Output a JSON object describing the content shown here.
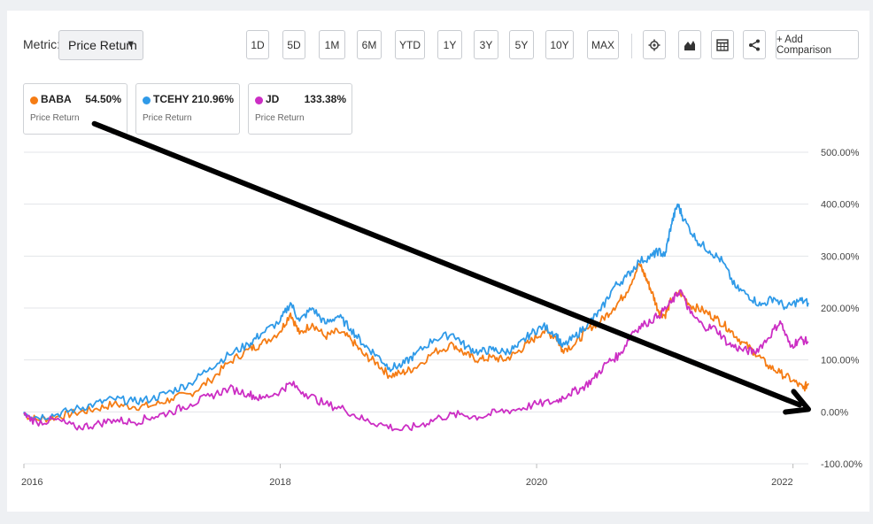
{
  "toolbar": {
    "metric_label": "Metric:",
    "metric_value": "Price Return",
    "ranges": [
      "1D",
      "5D",
      "1M",
      "6M",
      "YTD",
      "1Y",
      "3Y",
      "5Y",
      "10Y",
      "MAX"
    ],
    "add_comparison": "+ Add Comparison",
    "icons": [
      "gear-icon",
      "mountain-chart-icon",
      "table-icon",
      "share-icon"
    ]
  },
  "legend_cards": [
    {
      "ticker": "BABA",
      "value": "54.50%",
      "sub": "Price Return",
      "color": "#f57c14"
    },
    {
      "ticker": "TCEHY",
      "value": "210.96%",
      "sub": "Price Return",
      "color": "#2f9ae8"
    },
    {
      "ticker": "JD",
      "value": "133.38%",
      "sub": "Price Return",
      "color": "#cc2ec4"
    }
  ],
  "chart_data": {
    "type": "line",
    "x_ticks": [
      "2016",
      "2018",
      "2020",
      "2022"
    ],
    "y_ticks": [
      "500.00%",
      "400.00%",
      "300.00%",
      "200.00%",
      "100.00%",
      "0.00%",
      "-100.00%"
    ],
    "xlim": [
      2016.0,
      2022.12
    ],
    "ylim": [
      -100,
      500
    ],
    "grid": true,
    "arrow_annotation": {
      "from": [
        2016.55,
        555
      ],
      "to": [
        2022.12,
        5
      ]
    },
    "series": [
      {
        "name": "BABA",
        "color": "#f57c14",
        "points": [
          [
            2016.0,
            -5
          ],
          [
            2016.1,
            -15
          ],
          [
            2016.25,
            -10
          ],
          [
            2016.4,
            -2
          ],
          [
            2016.55,
            5
          ],
          [
            2016.7,
            15
          ],
          [
            2016.85,
            10
          ],
          [
            2017.0,
            12
          ],
          [
            2017.15,
            25
          ],
          [
            2017.3,
            35
          ],
          [
            2017.45,
            60
          ],
          [
            2017.6,
            95
          ],
          [
            2017.75,
            120
          ],
          [
            2017.85,
            130
          ],
          [
            2018.0,
            155
          ],
          [
            2018.08,
            190
          ],
          [
            2018.15,
            150
          ],
          [
            2018.25,
            170
          ],
          [
            2018.35,
            145
          ],
          [
            2018.45,
            155
          ],
          [
            2018.55,
            140
          ],
          [
            2018.65,
            110
          ],
          [
            2018.75,
            95
          ],
          [
            2018.85,
            70
          ],
          [
            2018.95,
            75
          ],
          [
            2019.05,
            85
          ],
          [
            2019.2,
            115
          ],
          [
            2019.35,
            130
          ],
          [
            2019.45,
            110
          ],
          [
            2019.55,
            100
          ],
          [
            2019.65,
            105
          ],
          [
            2019.75,
            100
          ],
          [
            2019.85,
            115
          ],
          [
            2019.95,
            135
          ],
          [
            2020.05,
            155
          ],
          [
            2020.15,
            145
          ],
          [
            2020.2,
            120
          ],
          [
            2020.3,
            130
          ],
          [
            2020.4,
            160
          ],
          [
            2020.5,
            175
          ],
          [
            2020.6,
            200
          ],
          [
            2020.7,
            230
          ],
          [
            2020.8,
            285
          ],
          [
            2020.85,
            260
          ],
          [
            2020.9,
            230
          ],
          [
            2020.95,
            195
          ],
          [
            2021.0,
            185
          ],
          [
            2021.05,
            215
          ],
          [
            2021.12,
            230
          ],
          [
            2021.2,
            205
          ],
          [
            2021.3,
            195
          ],
          [
            2021.4,
            180
          ],
          [
            2021.5,
            160
          ],
          [
            2021.6,
            135
          ],
          [
            2021.7,
            115
          ],
          [
            2021.8,
            90
          ],
          [
            2021.9,
            75
          ],
          [
            2022.0,
            60
          ],
          [
            2022.08,
            45
          ],
          [
            2022.12,
            55
          ]
        ]
      },
      {
        "name": "TCEHY",
        "color": "#2f9ae8",
        "points": [
          [
            2016.0,
            0
          ],
          [
            2016.1,
            -10
          ],
          [
            2016.25,
            -5
          ],
          [
            2016.4,
            5
          ],
          [
            2016.55,
            15
          ],
          [
            2016.7,
            25
          ],
          [
            2016.85,
            20
          ],
          [
            2017.0,
            25
          ],
          [
            2017.15,
            40
          ],
          [
            2017.3,
            55
          ],
          [
            2017.45,
            85
          ],
          [
            2017.6,
            110
          ],
          [
            2017.75,
            130
          ],
          [
            2017.85,
            150
          ],
          [
            2018.0,
            175
          ],
          [
            2018.08,
            210
          ],
          [
            2018.15,
            175
          ],
          [
            2018.25,
            200
          ],
          [
            2018.35,
            170
          ],
          [
            2018.45,
            185
          ],
          [
            2018.55,
            160
          ],
          [
            2018.65,
            130
          ],
          [
            2018.75,
            110
          ],
          [
            2018.85,
            85
          ],
          [
            2018.95,
            90
          ],
          [
            2019.05,
            110
          ],
          [
            2019.2,
            140
          ],
          [
            2019.35,
            150
          ],
          [
            2019.45,
            125
          ],
          [
            2019.55,
            115
          ],
          [
            2019.65,
            120
          ],
          [
            2019.75,
            115
          ],
          [
            2019.85,
            125
          ],
          [
            2019.95,
            150
          ],
          [
            2020.05,
            165
          ],
          [
            2020.15,
            150
          ],
          [
            2020.2,
            125
          ],
          [
            2020.3,
            145
          ],
          [
            2020.4,
            170
          ],
          [
            2020.5,
            195
          ],
          [
            2020.6,
            240
          ],
          [
            2020.7,
            260
          ],
          [
            2020.8,
            290
          ],
          [
            2020.9,
            300
          ],
          [
            2020.95,
            310
          ],
          [
            2021.0,
            300
          ],
          [
            2021.05,
            360
          ],
          [
            2021.1,
            400
          ],
          [
            2021.15,
            370
          ],
          [
            2021.25,
            330
          ],
          [
            2021.35,
            310
          ],
          [
            2021.45,
            290
          ],
          [
            2021.55,
            240
          ],
          [
            2021.65,
            225
          ],
          [
            2021.75,
            205
          ],
          [
            2021.85,
            220
          ],
          [
            2021.95,
            200
          ],
          [
            2022.05,
            215
          ],
          [
            2022.12,
            210
          ]
        ]
      },
      {
        "name": "JD",
        "color": "#cc2ec4",
        "points": [
          [
            2016.0,
            -5
          ],
          [
            2016.1,
            -20
          ],
          [
            2016.25,
            -15
          ],
          [
            2016.4,
            -30
          ],
          [
            2016.55,
            -25
          ],
          [
            2016.7,
            -15
          ],
          [
            2016.85,
            -20
          ],
          [
            2017.0,
            -10
          ],
          [
            2017.15,
            0
          ],
          [
            2017.3,
            15
          ],
          [
            2017.45,
            30
          ],
          [
            2017.6,
            45
          ],
          [
            2017.75,
            35
          ],
          [
            2017.85,
            25
          ],
          [
            2018.0,
            40
          ],
          [
            2018.08,
            55
          ],
          [
            2018.2,
            35
          ],
          [
            2018.35,
            15
          ],
          [
            2018.5,
            5
          ],
          [
            2018.65,
            -15
          ],
          [
            2018.8,
            -25
          ],
          [
            2018.95,
            -35
          ],
          [
            2019.1,
            -25
          ],
          [
            2019.25,
            -10
          ],
          [
            2019.4,
            -5
          ],
          [
            2019.55,
            -10
          ],
          [
            2019.7,
            0
          ],
          [
            2019.85,
            5
          ],
          [
            2020.0,
            15
          ],
          [
            2020.15,
            20
          ],
          [
            2020.25,
            35
          ],
          [
            2020.35,
            45
          ],
          [
            2020.45,
            65
          ],
          [
            2020.55,
            95
          ],
          [
            2020.65,
            110
          ],
          [
            2020.75,
            155
          ],
          [
            2020.85,
            170
          ],
          [
            2020.95,
            185
          ],
          [
            2021.05,
            210
          ],
          [
            2021.12,
            235
          ],
          [
            2021.2,
            190
          ],
          [
            2021.3,
            165
          ],
          [
            2021.4,
            160
          ],
          [
            2021.5,
            130
          ],
          [
            2021.6,
            120
          ],
          [
            2021.7,
            115
          ],
          [
            2021.8,
            140
          ],
          [
            2021.9,
            175
          ],
          [
            2021.98,
            125
          ],
          [
            2022.05,
            140
          ],
          [
            2022.12,
            135
          ]
        ]
      }
    ]
  }
}
